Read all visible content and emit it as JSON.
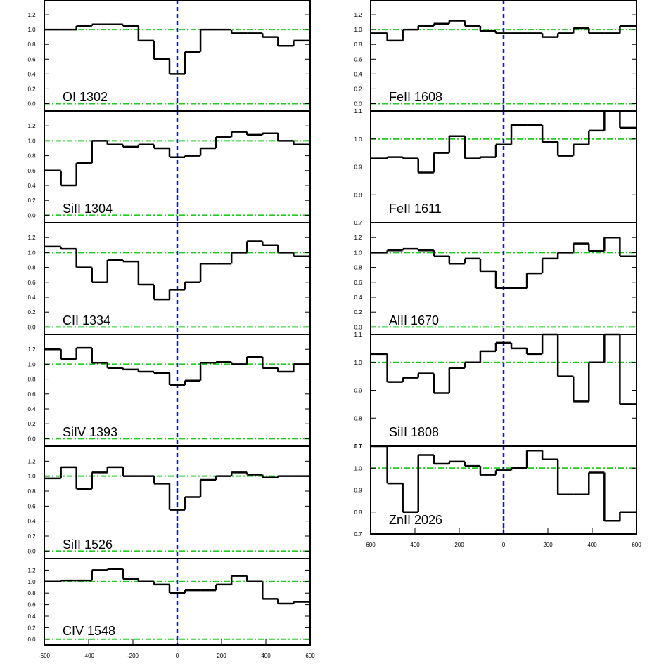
{
  "chart_data": [
    {
      "type": "step",
      "label": "OI 1302",
      "x": [
        -560,
        -490,
        -420,
        -350,
        -280,
        -210,
        -140,
        -70,
        0,
        70,
        140,
        210,
        280,
        350,
        420,
        490,
        560
      ],
      "values": [
        1.0,
        1.0,
        1.05,
        1.07,
        1.07,
        1.05,
        0.85,
        0.6,
        0.4,
        0.7,
        1.0,
        1.0,
        0.95,
        0.95,
        0.9,
        0.78,
        0.85
      ],
      "xlim": [
        -600,
        600
      ],
      "ylim": [
        -0.1,
        1.4
      ],
      "yticks": [
        {
          "value": 0,
          "label": "0.0"
        },
        0.2,
        0.4,
        0.6,
        0.8,
        {
          "value": 1,
          "label": "1.0"
        },
        1.2
      ],
      "hlines": [
        0,
        1
      ],
      "vline": 0,
      "color": "#000000"
    },
    {
      "type": "step",
      "label": "SiII 1304",
      "x": [
        -560,
        -490,
        -420,
        -350,
        -280,
        -210,
        -140,
        -70,
        0,
        70,
        140,
        210,
        280,
        350,
        420,
        490,
        560
      ],
      "values": [
        0.6,
        0.4,
        0.7,
        1.0,
        0.95,
        0.92,
        0.95,
        0.9,
        0.78,
        0.8,
        0.9,
        1.05,
        1.12,
        1.08,
        1.1,
        1.0,
        0.95
      ],
      "xlim": [
        -600,
        600
      ],
      "ylim": [
        -0.1,
        1.4
      ],
      "yticks": [
        {
          "value": 0,
          "label": "0.0"
        },
        0.2,
        0.4,
        0.6,
        0.8,
        {
          "value": 1,
          "label": "1.0"
        },
        1.2
      ],
      "hlines": [
        0,
        1
      ],
      "vline": 0,
      "color": "#000000"
    },
    {
      "type": "step",
      "label": "CII 1334",
      "x": [
        -560,
        -490,
        -420,
        -350,
        -280,
        -210,
        -140,
        -70,
        0,
        70,
        140,
        210,
        280,
        350,
        420,
        490,
        560
      ],
      "values": [
        1.08,
        1.05,
        0.8,
        0.6,
        0.9,
        0.88,
        0.57,
        0.37,
        0.5,
        0.6,
        0.85,
        0.85,
        1.0,
        1.15,
        1.1,
        1.0,
        0.95
      ],
      "xlim": [
        -600,
        600
      ],
      "ylim": [
        -0.1,
        1.4
      ],
      "yticks": [
        {
          "value": 0,
          "label": "0.0"
        },
        0.2,
        0.4,
        0.6,
        0.8,
        {
          "value": 1,
          "label": "1.0"
        },
        1.2
      ],
      "hlines": [
        0,
        1
      ],
      "vline": 0,
      "color": "#000000"
    },
    {
      "type": "step",
      "label": "SiIV 1393",
      "x": [
        -560,
        -490,
        -420,
        -350,
        -280,
        -210,
        -140,
        -70,
        0,
        70,
        140,
        210,
        280,
        350,
        420,
        490,
        560
      ],
      "values": [
        1.2,
        1.07,
        1.22,
        1.02,
        0.95,
        0.93,
        0.9,
        0.88,
        0.72,
        0.78,
        1.02,
        1.03,
        1.0,
        1.1,
        0.95,
        0.9,
        1.0
      ],
      "xlim": [
        -600,
        600
      ],
      "ylim": [
        -0.1,
        1.4
      ],
      "yticks": [
        {
          "value": 0,
          "label": "0.0"
        },
        0.2,
        0.4,
        0.6,
        0.8,
        {
          "value": 1,
          "label": "1.0"
        },
        1.2
      ],
      "hlines": [
        0,
        1
      ],
      "vline": 0,
      "color": "#000000"
    },
    {
      "type": "step",
      "label": "SiII 1526",
      "x": [
        -560,
        -490,
        -420,
        -350,
        -280,
        -210,
        -140,
        -70,
        0,
        70,
        140,
        210,
        280,
        350,
        420,
        490,
        560
      ],
      "values": [
        0.97,
        1.12,
        0.83,
        1.05,
        1.12,
        1.0,
        1.0,
        0.9,
        0.55,
        0.72,
        0.95,
        1.0,
        1.05,
        1.02,
        0.98,
        1.0,
        1.0
      ],
      "xlim": [
        -600,
        600
      ],
      "ylim": [
        -0.1,
        1.4
      ],
      "yticks": [
        {
          "value": 0,
          "label": "0.0"
        },
        0.2,
        0.4,
        0.6,
        0.8,
        {
          "value": 1,
          "label": "1.0"
        },
        1.2
      ],
      "hlines": [
        0,
        1
      ],
      "vline": 0,
      "color": "#000000"
    },
    {
      "type": "step",
      "label": "CIV 1548",
      "x": [
        -560,
        -490,
        -420,
        -350,
        -280,
        -210,
        -140,
        -70,
        0,
        70,
        140,
        210,
        280,
        350,
        420,
        490,
        560
      ],
      "values": [
        1.0,
        1.02,
        1.02,
        1.2,
        1.22,
        1.05,
        1.0,
        0.95,
        0.8,
        0.85,
        0.85,
        0.95,
        1.1,
        1.0,
        0.7,
        0.62,
        0.65
      ],
      "xlim": [
        -600,
        600
      ],
      "ylim": [
        -0.1,
        1.4
      ],
      "yticks": [
        {
          "value": 0,
          "label": "0.0"
        },
        0.2,
        0.4,
        0.6,
        0.8,
        {
          "value": 1,
          "label": "1.0"
        },
        1.2
      ],
      "xticks": [
        -600,
        -400,
        -200,
        0,
        200,
        400,
        600
      ],
      "hlines": [
        0,
        1
      ],
      "vline": 0,
      "color": "#000000"
    },
    {
      "type": "step",
      "label": "FeII 1608",
      "x": [
        -560,
        -490,
        -420,
        -350,
        -280,
        -210,
        -140,
        -70,
        0,
        70,
        140,
        210,
        280,
        350,
        420,
        490,
        560
      ],
      "values": [
        0.95,
        0.85,
        1.0,
        1.05,
        1.08,
        1.12,
        1.05,
        0.98,
        0.95,
        0.95,
        0.95,
        0.9,
        0.95,
        1.02,
        0.95,
        0.95,
        1.05
      ],
      "xlim": [
        -600,
        600
      ],
      "ylim": [
        -0.1,
        1.4
      ],
      "yticks": [
        {
          "value": 0,
          "label": "0.0"
        },
        0.2,
        0.4,
        0.6,
        0.8,
        {
          "value": 1,
          "label": "1.0"
        },
        1.2
      ],
      "hlines": [
        0,
        1
      ],
      "vline": 0,
      "color": "#000000"
    },
    {
      "type": "step",
      "label": "FeII 1611",
      "x": [
        -560,
        -490,
        -420,
        -350,
        -280,
        -210,
        -140,
        -70,
        0,
        70,
        140,
        210,
        280,
        350,
        420,
        490,
        560
      ],
      "values": [
        0.93,
        0.935,
        0.93,
        0.88,
        0.95,
        1.01,
        0.93,
        0.935,
        0.98,
        1.05,
        1.05,
        0.99,
        0.94,
        0.98,
        1.03,
        1.1,
        1.04
      ],
      "xlim": [
        -600,
        600
      ],
      "ylim": [
        0.7,
        1.1
      ],
      "yticks": [
        0.7,
        0.8,
        0.9,
        {
          "value": 1,
          "label": "1.0"
        },
        1.1
      ],
      "hlines": [
        1
      ],
      "vline": 0,
      "color": "#000000"
    },
    {
      "type": "step",
      "label": "AlII 1670",
      "x": [
        -560,
        -490,
        -420,
        -350,
        -280,
        -210,
        -140,
        -70,
        0,
        70,
        140,
        210,
        280,
        350,
        420,
        490,
        560
      ],
      "values": [
        1.0,
        1.03,
        1.05,
        1.03,
        0.95,
        0.85,
        0.92,
        0.75,
        0.52,
        0.52,
        0.72,
        0.92,
        1.0,
        1.12,
        1.02,
        1.2,
        0.95
      ],
      "xlim": [
        -600,
        600
      ],
      "ylim": [
        -0.1,
        1.4
      ],
      "yticks": [
        {
          "value": 0,
          "label": "0.0"
        },
        0.2,
        0.4,
        0.6,
        0.8,
        {
          "value": 1,
          "label": "1.0"
        },
        1.2
      ],
      "hlines": [
        0,
        1
      ],
      "vline": 0,
      "color": "#000000"
    },
    {
      "type": "step",
      "label": "SiII 1808",
      "x": [
        -560,
        -490,
        -420,
        -350,
        -280,
        -210,
        -140,
        -70,
        0,
        70,
        140,
        210,
        280,
        350,
        420,
        490,
        560
      ],
      "values": [
        1.03,
        0.93,
        0.945,
        0.96,
        0.89,
        0.98,
        1.0,
        1.04,
        1.07,
        1.05,
        1.03,
        1.1,
        0.95,
        0.86,
        1.0,
        1.1,
        0.85
      ],
      "xlim": [
        -600,
        600
      ],
      "ylim": [
        0.7,
        1.1
      ],
      "yticks": [
        0.7,
        0.8,
        0.9,
        {
          "value": 1,
          "label": "1.0"
        },
        1.1
      ],
      "hlines": [
        1
      ],
      "vline": 0,
      "color": "#000000"
    },
    {
      "type": "step",
      "label": "ZnII 2026",
      "x": [
        -560,
        -490,
        -420,
        -350,
        -280,
        -210,
        -140,
        -70,
        0,
        70,
        140,
        210,
        280,
        350,
        420,
        490,
        560
      ],
      "values": [
        1.1,
        0.93,
        0.8,
        1.06,
        1.02,
        1.03,
        1.01,
        0.97,
        0.99,
        1.0,
        1.08,
        1.04,
        0.88,
        0.88,
        0.98,
        0.76,
        0.8
      ],
      "xlim": [
        -600,
        600
      ],
      "ylim": [
        0.7,
        1.1
      ],
      "yticks": [
        0.7,
        0.8,
        0.9,
        {
          "value": 1,
          "label": "1.0"
        },
        1.1
      ],
      "xticks": [
        {
          "value": -600,
          "label": "600"
        },
        {
          "value": -400,
          "label": "400"
        },
        {
          "value": -200,
          "label": "200"
        },
        0,
        200,
        400,
        600
      ],
      "hlines": [
        1
      ],
      "vline": 0,
      "color": "#000000"
    }
  ]
}
